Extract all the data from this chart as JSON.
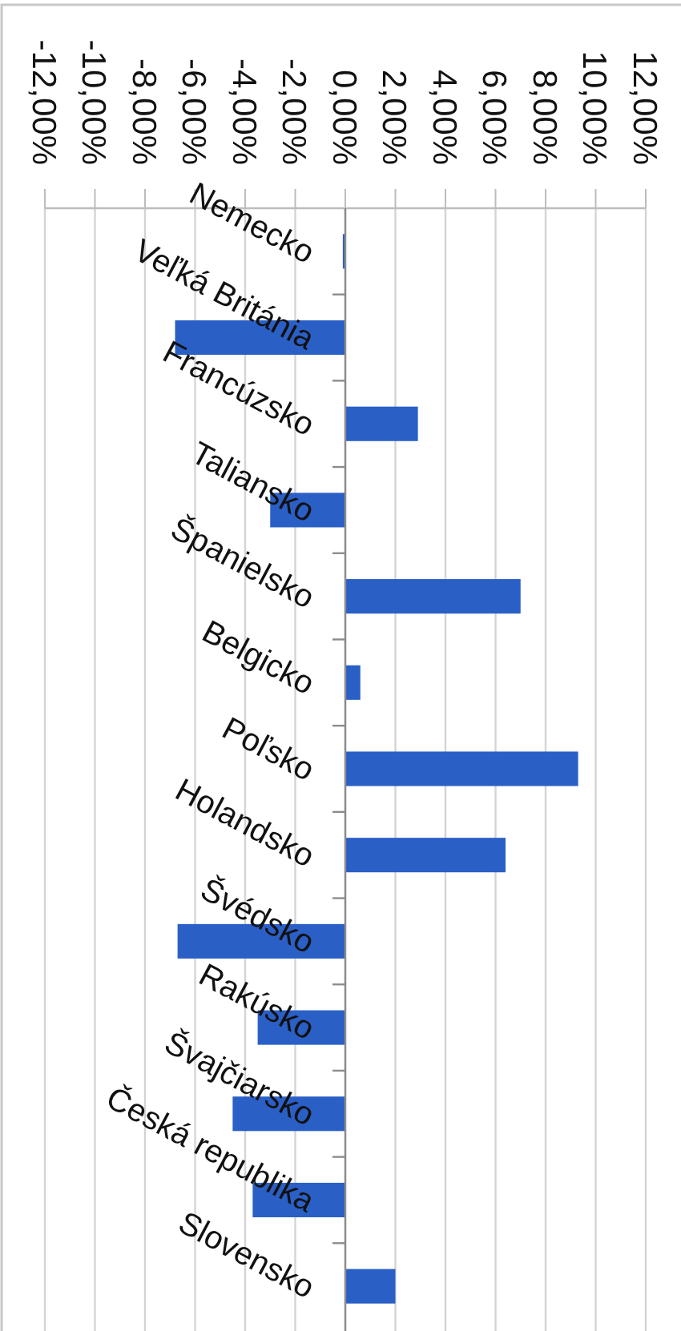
{
  "chart_data": {
    "type": "bar",
    "orientation": "horizontal",
    "categories": [
      "Nemecko",
      "Veľká Británia",
      "Francúzsko",
      "Taliansko",
      "Španielsko",
      "Belgicko",
      "Poľsko",
      "Holandsko",
      "Švédsko",
      "Rakúsko",
      "Švajčiarsko",
      "Česká republika",
      "Slovensko"
    ],
    "values": [
      -0.1,
      -6.8,
      2.9,
      -3.0,
      7.0,
      0.6,
      9.3,
      6.4,
      -6.7,
      -3.5,
      -4.5,
      -3.7,
      2.0
    ],
    "color": "#2a5fc6",
    "xlim": [
      -12,
      12
    ],
    "xticks": [
      {
        "value": -12,
        "label": "-12,00%"
      },
      {
        "value": -10,
        "label": "-10,00%"
      },
      {
        "value": -8,
        "label": "-8,00%"
      },
      {
        "value": -6,
        "label": "-6,00%"
      },
      {
        "value": -4,
        "label": "-4,00%"
      },
      {
        "value": -2,
        "label": "-2,00%"
      },
      {
        "value": 0,
        "label": "0,00%"
      },
      {
        "value": 2,
        "label": "2,00%"
      },
      {
        "value": 4,
        "label": "4,00%"
      },
      {
        "value": 6,
        "label": "6,00%"
      },
      {
        "value": 8,
        "label": "8,00%"
      },
      {
        "value": 10,
        "label": "10,00%"
      },
      {
        "value": 12,
        "label": "12,00%"
      }
    ],
    "grid": "x"
  }
}
